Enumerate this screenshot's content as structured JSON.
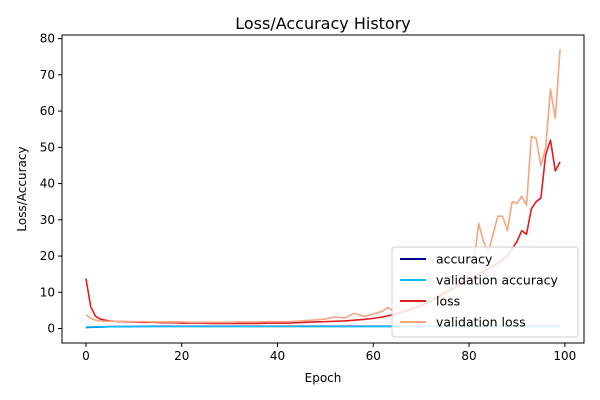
{
  "chart_data": {
    "type": "line",
    "title": "Loss/Accuracy History",
    "xlabel": "Epoch",
    "ylabel": "Loss/Accuracy",
    "xlim": [
      -5,
      104
    ],
    "ylim": [
      -4,
      81
    ],
    "xticks": [
      0,
      20,
      40,
      60,
      80,
      100
    ],
    "yticks": [
      0,
      10,
      20,
      30,
      40,
      50,
      60,
      70,
      80
    ],
    "grid": false,
    "legend_position": "lower-right",
    "series": [
      {
        "name": "accuracy",
        "color": "#00008b",
        "x": [
          0,
          5,
          10,
          15,
          20,
          25,
          30,
          35,
          40,
          45,
          50,
          55,
          60,
          65,
          70,
          75,
          80,
          85,
          90,
          95,
          99
        ],
        "y": [
          0.3,
          0.5,
          0.55,
          0.6,
          0.6,
          0.6,
          0.6,
          0.6,
          0.6,
          0.6,
          0.6,
          0.6,
          0.6,
          0.6,
          0.6,
          0.6,
          0.6,
          0.6,
          0.6,
          0.6,
          0.6
        ]
      },
      {
        "name": "validation accuracy",
        "color": "#00bfff",
        "x": [
          0,
          5,
          10,
          15,
          20,
          25,
          30,
          35,
          40,
          45,
          50,
          55,
          60,
          65,
          70,
          75,
          80,
          85,
          90,
          95,
          99
        ],
        "y": [
          0.4,
          0.5,
          0.55,
          0.55,
          0.55,
          0.55,
          0.55,
          0.55,
          0.55,
          0.55,
          0.55,
          0.55,
          0.55,
          0.55,
          0.55,
          0.55,
          0.55,
          0.55,
          0.55,
          0.55,
          0.55
        ]
      },
      {
        "name": "loss",
        "color": "#e41a1c",
        "x": [
          0,
          1,
          2,
          3,
          4,
          5,
          6,
          7,
          8,
          9,
          10,
          12,
          14,
          16,
          18,
          20,
          22,
          24,
          26,
          28,
          30,
          32,
          34,
          36,
          38,
          40,
          42,
          44,
          46,
          48,
          50,
          52,
          54,
          56,
          58,
          60,
          62,
          64,
          66,
          68,
          70,
          72,
          74,
          76,
          78,
          80,
          82,
          84,
          86,
          88,
          90,
          91,
          92,
          93,
          94,
          95,
          96,
          97,
          98,
          99
        ],
        "y": [
          13.8,
          6,
          3.4,
          2.6,
          2.3,
          2.1,
          2.0,
          1.9,
          1.9,
          1.8,
          1.8,
          1.7,
          1.7,
          1.6,
          1.6,
          1.5,
          1.5,
          1.5,
          1.4,
          1.4,
          1.4,
          1.4,
          1.4,
          1.4,
          1.5,
          1.5,
          1.5,
          1.6,
          1.7,
          1.8,
          1.9,
          2.0,
          2.1,
          2.3,
          2.5,
          2.8,
          3.2,
          3.8,
          4.5,
          5.3,
          6.3,
          7.5,
          9.0,
          10.5,
          12.0,
          13.5,
          15.0,
          16.5,
          18.0,
          20.0,
          24.0,
          27.0,
          26.0,
          33.0,
          35.0,
          36.0,
          48.0,
          52.0,
          43.5,
          46.0
        ]
      },
      {
        "name": "validation loss",
        "color": "#f4a582",
        "x": [
          0,
          1,
          2,
          3,
          4,
          5,
          6,
          7,
          8,
          9,
          10,
          12,
          14,
          16,
          18,
          20,
          22,
          24,
          26,
          28,
          30,
          32,
          34,
          36,
          38,
          40,
          42,
          44,
          46,
          48,
          50,
          52,
          54,
          55,
          56,
          57,
          58,
          60,
          62,
          63,
          64,
          65,
          66,
          68,
          70,
          72,
          74,
          76,
          78,
          80,
          81,
          82,
          83,
          84,
          85,
          86,
          87,
          88,
          89,
          90,
          91,
          92,
          93,
          94,
          95,
          96,
          97,
          98,
          99
        ],
        "y": [
          3.8,
          2.8,
          2.3,
          2.1,
          2.0,
          2.0,
          2.0,
          2.0,
          2.0,
          1.9,
          1.9,
          1.9,
          1.8,
          1.8,
          1.8,
          1.8,
          1.7,
          1.7,
          1.7,
          1.7,
          1.7,
          1.8,
          1.8,
          1.8,
          1.9,
          1.9,
          1.9,
          2.0,
          2.2,
          2.4,
          2.6,
          3.2,
          2.9,
          3.5,
          4.2,
          3.8,
          3.3,
          4.0,
          4.8,
          5.8,
          5.0,
          6.2,
          4.8,
          5.8,
          6.8,
          8.0,
          9.5,
          11.0,
          12.5,
          15.0,
          18.0,
          29.0,
          24.0,
          21.0,
          26.0,
          31.0,
          31.0,
          27.0,
          35.0,
          34.5,
          36.5,
          34.0,
          53.0,
          52.5,
          45.0,
          50.0,
          66.0,
          58.0,
          77.0
        ]
      }
    ]
  }
}
